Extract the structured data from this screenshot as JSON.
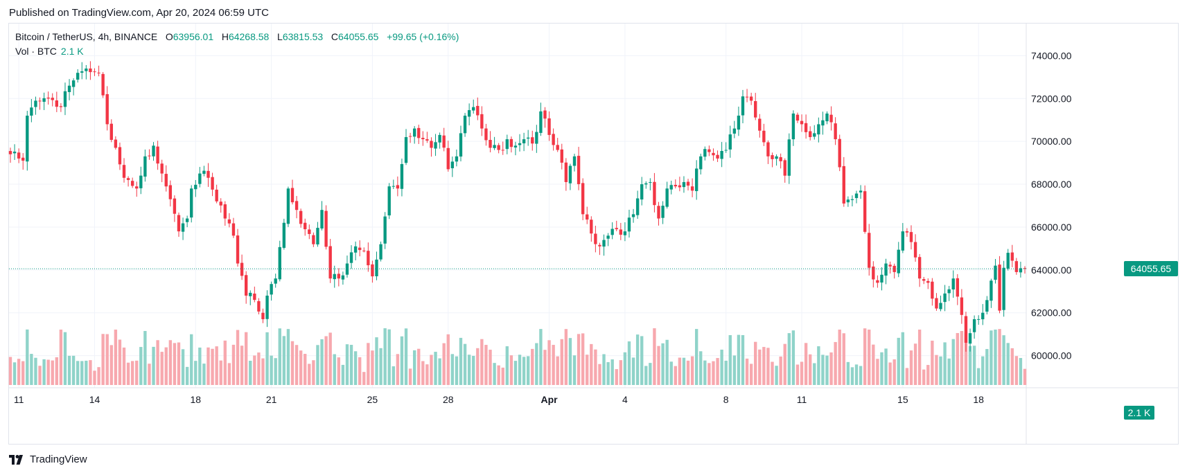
{
  "header": {
    "published": "Published on TradingView.com, Apr 20, 2024 06:59 UTC"
  },
  "legend": {
    "symbol": "Bitcoin / TetherUS, 4h, BINANCE",
    "open_label": "O",
    "open": "63956.01",
    "high_label": "H",
    "high": "64268.58",
    "low_label": "L",
    "low": "63815.53",
    "close_label": "C",
    "close": "64055.65",
    "change": "+99.65 (+0.16%)",
    "volume_label": "Vol · BTC",
    "volume": "2.1 K"
  },
  "price_tag": "64055.65",
  "volume_tag": "2.1 K",
  "brand": {
    "name": "TradingView"
  },
  "colors": {
    "up": "#089981",
    "down": "#f23645",
    "up_vol": "#8fd3c9",
    "down_vol": "#f7a8ae",
    "grid": "#f0f3fa"
  },
  "chart_data": {
    "type": "candlestick",
    "interval": "4h",
    "ylim": [
      58500,
      75500
    ],
    "yticks": [
      60000,
      62000,
      64000,
      66000,
      68000,
      70000,
      72000,
      74000
    ],
    "ytick_labels": [
      "60000.00",
      "62000.00",
      "64000.00",
      "66000.00",
      "68000.00",
      "70000.00",
      "72000.00",
      "74000.00"
    ],
    "xticks": [
      {
        "label": "11",
        "bar": 2
      },
      {
        "label": "14",
        "bar": 20
      },
      {
        "label": "18",
        "bar": 44
      },
      {
        "label": "21",
        "bar": 62
      },
      {
        "label": "25",
        "bar": 86
      },
      {
        "label": "28",
        "bar": 104
      },
      {
        "label": "Apr",
        "bar": 128,
        "bold": true
      },
      {
        "label": "4",
        "bar": 146
      },
      {
        "label": "8",
        "bar": 170
      },
      {
        "label": "11",
        "bar": 188
      },
      {
        "label": "15",
        "bar": 212
      },
      {
        "label": "18",
        "bar": 230
      }
    ],
    "bar_count": 242,
    "current_price": 64055.65,
    "anchors": [
      [
        0,
        69400
      ],
      [
        3,
        69100
      ],
      [
        4,
        71200
      ],
      [
        6,
        71900
      ],
      [
        9,
        72000
      ],
      [
        12,
        71600
      ],
      [
        14,
        72600
      ],
      [
        16,
        73200
      ],
      [
        18,
        73400
      ],
      [
        21,
        73200
      ],
      [
        23,
        70800
      ],
      [
        25,
        69700
      ],
      [
        27,
        68300
      ],
      [
        30,
        67800
      ],
      [
        32,
        69300
      ],
      [
        34,
        69800
      ],
      [
        36,
        68500
      ],
      [
        38,
        67300
      ],
      [
        40,
        65800
      ],
      [
        42,
        66400
      ],
      [
        43,
        67800
      ],
      [
        45,
        68500
      ],
      [
        47,
        68300
      ],
      [
        49,
        67200
      ],
      [
        51,
        66400
      ],
      [
        53,
        65600
      ],
      [
        54,
        64300
      ],
      [
        56,
        62800
      ],
      [
        58,
        62600
      ],
      [
        60,
        61700
      ],
      [
        61,
        62800
      ],
      [
        63,
        63600
      ],
      [
        65,
        66200
      ],
      [
        66,
        67800
      ],
      [
        68,
        66800
      ],
      [
        70,
        65900
      ],
      [
        72,
        65200
      ],
      [
        74,
        66800
      ],
      [
        76,
        63600
      ],
      [
        78,
        63600
      ],
      [
        80,
        64300
      ],
      [
        82,
        65100
      ],
      [
        84,
        64900
      ],
      [
        86,
        63700
      ],
      [
        88,
        65200
      ],
      [
        90,
        67900
      ],
      [
        92,
        67800
      ],
      [
        94,
        70200
      ],
      [
        96,
        70600
      ],
      [
        98,
        70100
      ],
      [
        100,
        69700
      ],
      [
        102,
        70300
      ],
      [
        104,
        68700
      ],
      [
        106,
        69300
      ],
      [
        108,
        71200
      ],
      [
        110,
        71600
      ],
      [
        112,
        70600
      ],
      [
        114,
        69700
      ],
      [
        116,
        69600
      ],
      [
        118,
        70100
      ],
      [
        120,
        69800
      ],
      [
        122,
        70100
      ],
      [
        124,
        69900
      ],
      [
        126,
        71400
      ],
      [
        128,
        70300
      ],
      [
        130,
        69600
      ],
      [
        132,
        68100
      ],
      [
        134,
        69300
      ],
      [
        136,
        66600
      ],
      [
        138,
        65700
      ],
      [
        140,
        65100
      ],
      [
        142,
        65600
      ],
      [
        144,
        65900
      ],
      [
        146,
        65800
      ],
      [
        148,
        66600
      ],
      [
        150,
        68000
      ],
      [
        152,
        68100
      ],
      [
        154,
        66400
      ],
      [
        156,
        67800
      ],
      [
        158,
        67900
      ],
      [
        160,
        68100
      ],
      [
        162,
        67700
      ],
      [
        164,
        69300
      ],
      [
        166,
        69500
      ],
      [
        168,
        69200
      ],
      [
        170,
        69600
      ],
      [
        172,
        70600
      ],
      [
        174,
        72100
      ],
      [
        176,
        71900
      ],
      [
        178,
        70500
      ],
      [
        180,
        69300
      ],
      [
        182,
        69300
      ],
      [
        184,
        68400
      ],
      [
        186,
        71300
      ],
      [
        188,
        70800
      ],
      [
        190,
        70200
      ],
      [
        192,
        70800
      ],
      [
        194,
        71300
      ],
      [
        196,
        70100
      ],
      [
        198,
        67100
      ],
      [
        200,
        67300
      ],
      [
        202,
        67700
      ],
      [
        204,
        64100
      ],
      [
        206,
        63400
      ],
      [
        208,
        64300
      ],
      [
        210,
        63900
      ],
      [
        212,
        65800
      ],
      [
        214,
        65300
      ],
      [
        216,
        63600
      ],
      [
        218,
        63400
      ],
      [
        220,
        62200
      ],
      [
        222,
        62900
      ],
      [
        224,
        63600
      ],
      [
        226,
        61900
      ],
      [
        227,
        60600
      ],
      [
        229,
        61700
      ],
      [
        231,
        62000
      ],
      [
        233,
        63500
      ],
      [
        234,
        64200
      ],
      [
        235,
        62100
      ],
      [
        236,
        64100
      ],
      [
        237,
        64800
      ],
      [
        239,
        63900
      ],
      [
        241,
        64055
      ]
    ]
  }
}
